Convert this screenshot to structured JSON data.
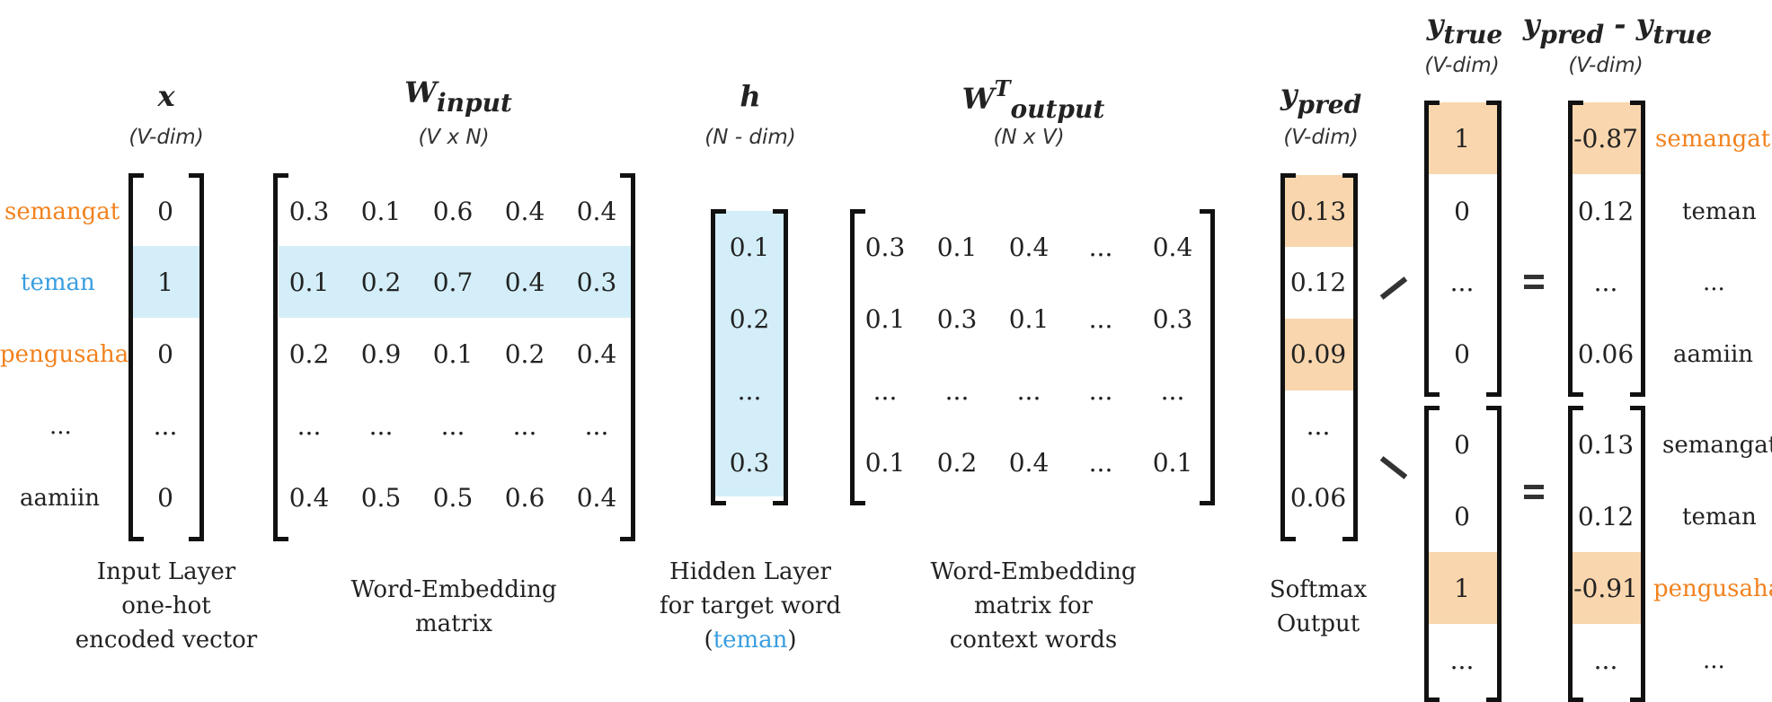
{
  "input": {
    "title": "x",
    "dim": "(V-dim)",
    "labels": [
      "semangat",
      "teman",
      "pengusaha",
      "...",
      "aamiin"
    ],
    "values": [
      "0",
      "1",
      "0",
      "...",
      "0"
    ],
    "caption": [
      "Input Layer",
      "one-hot",
      "encoded vector"
    ]
  },
  "w_input": {
    "title_base": "W",
    "title_sub": "input",
    "dim": "(V x N)",
    "rows": [
      [
        "0.3",
        "0.1",
        "0.6",
        "0.4",
        "0.4"
      ],
      [
        "0.1",
        "0.2",
        "0.7",
        "0.4",
        "0.3"
      ],
      [
        "0.2",
        "0.9",
        "0.1",
        "0.2",
        "0.4"
      ],
      [
        "...",
        "...",
        "...",
        "...",
        "..."
      ],
      [
        "0.4",
        "0.5",
        "0.5",
        "0.6",
        "0.4"
      ]
    ],
    "caption": [
      "Word-Embedding",
      "matrix"
    ]
  },
  "hidden": {
    "title": "h",
    "dim": "(N - dim)",
    "values": [
      "0.1",
      "0.2",
      "...",
      "0.3"
    ],
    "caption_1": "Hidden Layer",
    "caption_2": "for target word",
    "caption_open": "(",
    "caption_word": "teman",
    "caption_close": ")"
  },
  "w_output": {
    "title_base": "W",
    "title_sup": "T",
    "title_sub": "output",
    "dim": "(N x V)",
    "rows": [
      [
        "0.3",
        "0.1",
        "0.4",
        "...",
        "0.4"
      ],
      [
        "0.1",
        "0.3",
        "0.1",
        "...",
        "0.3"
      ],
      [
        "...",
        "...",
        "...",
        "...",
        "..."
      ],
      [
        "0.1",
        "0.2",
        "0.4",
        "...",
        "0.1"
      ]
    ],
    "caption": [
      "Word-Embedding",
      "matrix for",
      "context words"
    ]
  },
  "y_pred": {
    "title_base": "y",
    "title_sub": "pred",
    "dim": "(V-dim)",
    "values": [
      "0.13",
      "0.12",
      "0.09",
      "...",
      "0.06"
    ],
    "caption": [
      "Softmax",
      "Output"
    ]
  },
  "y_true": {
    "title_base": "y",
    "title_sub": "true",
    "dim": "(V-dim)",
    "top_values": [
      "1",
      "0",
      "...",
      "0"
    ],
    "bottom_values": [
      "0",
      "0",
      "1",
      "..."
    ]
  },
  "error": {
    "title_a": "y",
    "title_a_sub": "pred",
    "title_minus": " - ",
    "title_b": "y",
    "title_b_sub": "true",
    "dim": "(V-dim)",
    "top_values": [
      "-0.87",
      "0.12",
      "...",
      "0.06"
    ],
    "bottom_values": [
      "0.13",
      "0.12",
      "-0.91",
      "..."
    ],
    "top_labels": [
      "semangat",
      "teman",
      "...",
      "aamiin"
    ],
    "bottom_labels": [
      "semangat",
      "teman",
      "pengusaha",
      "..."
    ]
  },
  "colors": {
    "orange": "#f2821e",
    "blue": "#3a9ee0",
    "highlight_blue": "#d3eef8",
    "highlight_orange": "#f9d6ad"
  }
}
